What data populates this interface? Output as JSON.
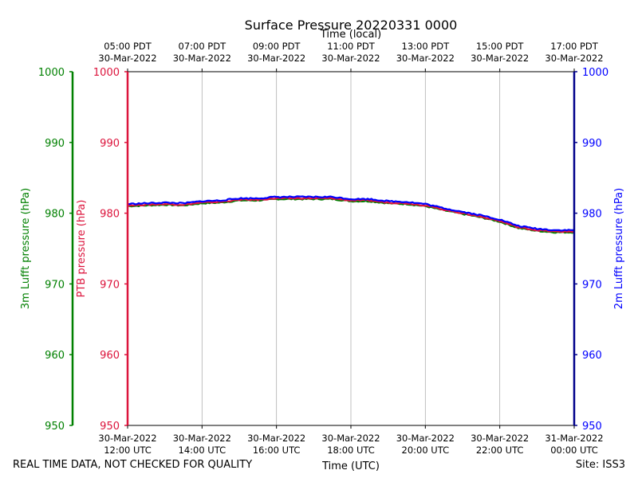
{
  "chart_data": {
    "type": "line",
    "title": "Surface Pressure 20220331 0000",
    "top_axis_label": "Time (local)",
    "xlabel": "Time (UTC)",
    "ylabel_outer_left": "3m Lufft pressure (hPa)",
    "ylabel_left": "PTB pressure (hPa)",
    "ylabel_right": "2m Lufft pressure (hPa)",
    "ylim": [
      950,
      1000
    ],
    "yticks": [
      950,
      960,
      970,
      980,
      990,
      1000
    ],
    "xlim_hours": [
      12,
      24
    ],
    "grid": "vertical",
    "bottom_ticks": [
      {
        "hour": 12,
        "line1": "30-Mar-2022",
        "line2": "12:00 UTC"
      },
      {
        "hour": 14,
        "line1": "30-Mar-2022",
        "line2": "14:00 UTC"
      },
      {
        "hour": 16,
        "line1": "30-Mar-2022",
        "line2": "16:00 UTC"
      },
      {
        "hour": 18,
        "line1": "30-Mar-2022",
        "line2": "18:00 UTC"
      },
      {
        "hour": 20,
        "line1": "30-Mar-2022",
        "line2": "20:00 UTC"
      },
      {
        "hour": 22,
        "line1": "30-Mar-2022",
        "line2": "22:00 UTC"
      },
      {
        "hour": 24,
        "line1": "31-Mar-2022",
        "line2": "00:00 UTC"
      }
    ],
    "top_ticks": [
      {
        "hour": 12,
        "line1": "05:00 PDT",
        "line2": "30-Mar-2022"
      },
      {
        "hour": 14,
        "line1": "07:00 PDT",
        "line2": "30-Mar-2022"
      },
      {
        "hour": 16,
        "line1": "09:00 PDT",
        "line2": "30-Mar-2022"
      },
      {
        "hour": 18,
        "line1": "11:00 PDT",
        "line2": "30-Mar-2022"
      },
      {
        "hour": 20,
        "line1": "13:00 PDT",
        "line2": "30-Mar-2022"
      },
      {
        "hour": 22,
        "line1": "15:00 PDT",
        "line2": "30-Mar-2022"
      },
      {
        "hour": 24,
        "line1": "17:00 PDT",
        "line2": "30-Mar-2022"
      }
    ],
    "series": [
      {
        "name": "3m Lufft pressure",
        "color": "#008000",
        "x": [
          12,
          12.5,
          13,
          13.5,
          14,
          14.5,
          15,
          15.5,
          16,
          16.5,
          17,
          17.5,
          18,
          18.5,
          19,
          19.5,
          20,
          20.5,
          21,
          21.5,
          22,
          22.5,
          23,
          23.5,
          24
        ],
        "y": [
          981.0,
          981.1,
          981.2,
          981.1,
          981.4,
          981.5,
          981.8,
          981.8,
          982.0,
          982.0,
          982.0,
          982.0,
          981.7,
          981.7,
          981.4,
          981.3,
          981.0,
          980.4,
          979.9,
          979.4,
          978.8,
          977.9,
          977.5,
          977.3,
          977.3
        ]
      },
      {
        "name": "PTB pressure",
        "color": "#DC143C",
        "x": [
          12,
          12.5,
          13,
          13.5,
          14,
          14.5,
          15,
          15.5,
          16,
          16.5,
          17,
          17.5,
          18,
          18.5,
          19,
          19.5,
          20,
          20.5,
          21,
          21.5,
          22,
          22.5,
          23,
          23.5,
          24
        ],
        "y": [
          981.1,
          981.2,
          981.3,
          981.2,
          981.5,
          981.6,
          981.9,
          981.9,
          982.1,
          982.1,
          982.1,
          982.1,
          981.8,
          981.8,
          981.5,
          981.4,
          981.1,
          980.5,
          980.0,
          979.5,
          978.9,
          978.0,
          977.6,
          977.4,
          977.4
        ]
      },
      {
        "name": "2m Lufft pressure",
        "color": "#0000FF",
        "x": [
          12,
          12.5,
          13,
          13.5,
          14,
          14.5,
          15,
          15.5,
          16,
          16.5,
          17,
          17.5,
          18,
          18.5,
          19,
          19.5,
          20,
          20.5,
          21,
          21.5,
          22,
          22.5,
          23,
          23.5,
          24
        ],
        "y": [
          981.3,
          981.4,
          981.5,
          981.4,
          981.7,
          981.8,
          982.1,
          982.1,
          982.3,
          982.3,
          982.3,
          982.3,
          982.0,
          982.0,
          981.7,
          981.6,
          981.3,
          980.7,
          980.2,
          979.7,
          979.1,
          978.2,
          977.8,
          977.6,
          977.6
        ]
      }
    ]
  },
  "footer": {
    "left_text": "REAL TIME DATA, NOT CHECKED FOR QUALITY",
    "right_text": "Site: ISS3"
  },
  "colors": {
    "outer_left_axis": "#008000",
    "left_axis": "#DC143C",
    "right_axis": "#00008B",
    "right_tick_text": "#0000FF",
    "grid": "#b0b0b0"
  }
}
